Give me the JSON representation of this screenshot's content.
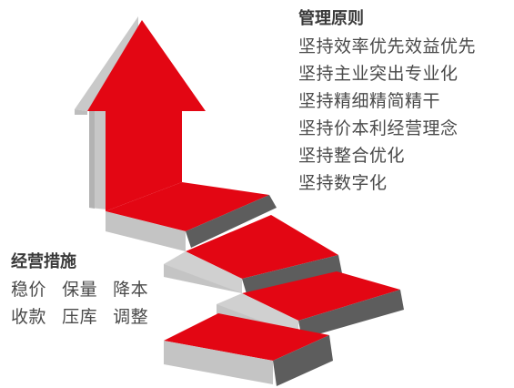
{
  "colors": {
    "red": "#e30613",
    "red_dark": "#b80510",
    "gray_top": "#d2d2d2",
    "gray_front": "#bdbdbd",
    "gray_side": "#7a7a7a",
    "gray_dark": "#5d5d5d",
    "text": "#4a4a4a"
  },
  "principles": {
    "title": "管理原则",
    "items": [
      "坚持效率优先效益优先",
      "坚持主业突出专业化",
      "坚持精细精简精干",
      "坚持价本利经营理念",
      "坚持整合优化",
      "坚持数字化"
    ]
  },
  "measures": {
    "title": "经营措施",
    "lines": [
      "稳价  保量  降本",
      "收款  压库  调整"
    ]
  }
}
